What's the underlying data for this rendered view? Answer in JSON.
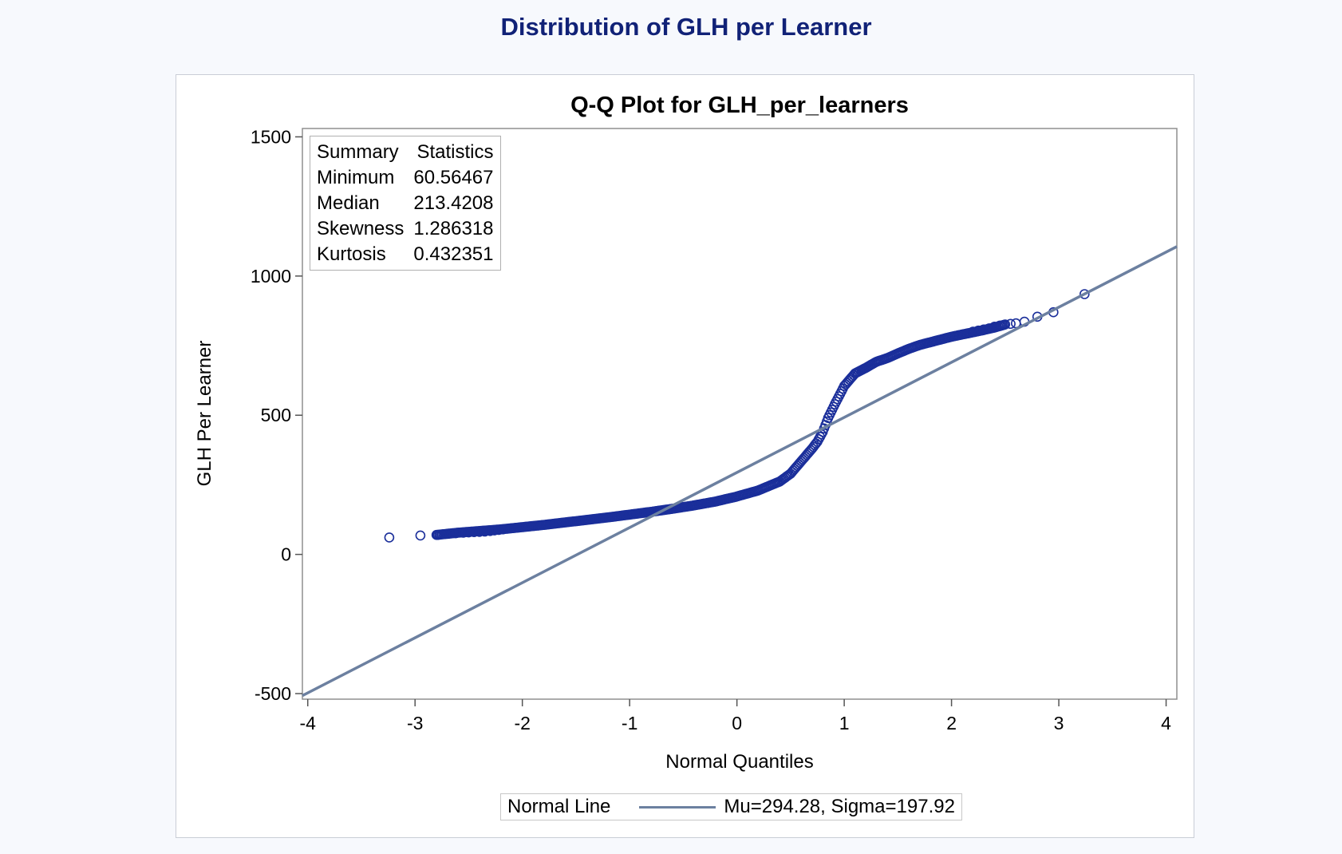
{
  "page": {
    "title": "Distribution of GLH per Learner"
  },
  "chart_data": {
    "type": "scatter",
    "title": "Q-Q Plot for GLH_per_learners",
    "xlabel": "Normal Quantiles",
    "ylabel": "GLH Per Learner",
    "xlim": [
      -4.05,
      4.1
    ],
    "ylim": [
      -520,
      1530
    ],
    "xticks": [
      -4,
      -3,
      -2,
      -1,
      0,
      1,
      2,
      3,
      4
    ],
    "yticks": [
      -500,
      0,
      500,
      1000,
      1500
    ],
    "grid": false,
    "colors": {
      "points": "#1a2e9a",
      "normal_line": "#6c80a0"
    },
    "summary_statistics": {
      "header": [
        "Summary",
        "Statistics"
      ],
      "rows": [
        {
          "label": "Minimum",
          "value": "60.56467"
        },
        {
          "label": "Median",
          "value": "213.4208"
        },
        {
          "label": "Skewness",
          "value": "1.286318"
        },
        {
          "label": "Kurtosis",
          "value": "0.432351"
        }
      ]
    },
    "reference_line": {
      "legend_title": "Normal Line",
      "label": "Mu=294.28, Sigma=197.92",
      "mu": 294.28,
      "sigma": 197.92
    },
    "quantile_curve": {
      "x": [
        -2.8,
        -2.6,
        -2.4,
        -2.2,
        -2.0,
        -1.8,
        -1.6,
        -1.4,
        -1.2,
        -1.0,
        -0.8,
        -0.6,
        -0.4,
        -0.2,
        0.0,
        0.2,
        0.4,
        0.5,
        0.6,
        0.7,
        0.75,
        0.8,
        0.85,
        0.9,
        1.0,
        1.1,
        1.2,
        1.3,
        1.4,
        1.5,
        1.6,
        1.7,
        1.8,
        1.9,
        2.0,
        2.1,
        2.2,
        2.3,
        2.4,
        2.5
      ],
      "y": [
        70,
        78,
        84,
        90,
        98,
        106,
        115,
        124,
        133,
        143,
        153,
        164,
        176,
        190,
        208,
        230,
        262,
        290,
        335,
        380,
        405,
        440,
        490,
        530,
        605,
        650,
        670,
        692,
        705,
        722,
        738,
        752,
        762,
        772,
        782,
        790,
        798,
        806,
        815,
        826
      ]
    },
    "points": {
      "x": [
        -3.24,
        -2.95,
        -2.79,
        -2.69,
        -2.62,
        -2.55,
        -2.5,
        -2.45,
        -2.4,
        -2.35,
        -2.3,
        -2.26,
        -2.22,
        -2.18,
        2.15,
        2.2,
        2.25,
        2.3,
        2.35,
        2.4,
        2.45,
        2.5,
        2.55,
        2.6,
        2.68,
        2.8,
        2.95,
        3.24
      ],
      "y": [
        61,
        68,
        70,
        74,
        76,
        78,
        79,
        80,
        81,
        82,
        84,
        86,
        88,
        90,
        794,
        800,
        804,
        808,
        812,
        818,
        822,
        826,
        828,
        830,
        836,
        854,
        870,
        935
      ]
    }
  }
}
